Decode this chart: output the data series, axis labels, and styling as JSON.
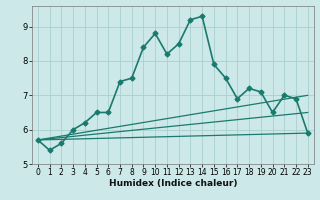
{
  "title": "",
  "xlabel": "Humidex (Indice chaleur)",
  "ylabel": "",
  "bg_color": "#cce8e8",
  "grid_color": "#aad0d0",
  "line_color": "#1a7a6e",
  "xlim": [
    -0.5,
    23.5
  ],
  "ylim": [
    5.0,
    9.6
  ],
  "xticks": [
    0,
    1,
    2,
    3,
    4,
    5,
    6,
    7,
    8,
    9,
    10,
    11,
    12,
    13,
    14,
    15,
    16,
    17,
    18,
    19,
    20,
    21,
    22,
    23
  ],
  "yticks": [
    5,
    6,
    7,
    8,
    9
  ],
  "series": [
    {
      "x": [
        0,
        1,
        2,
        3,
        4,
        5,
        6,
        7,
        8,
        9,
        10,
        11,
        12,
        13,
        14,
        15,
        16,
        17,
        18,
        19,
        20,
        21,
        22,
        23
      ],
      "y": [
        5.7,
        5.4,
        5.6,
        6.0,
        6.2,
        6.5,
        6.5,
        7.4,
        7.5,
        8.4,
        8.8,
        8.2,
        8.5,
        9.2,
        9.3,
        7.9,
        7.5,
        6.9,
        7.2,
        7.1,
        6.5,
        7.0,
        6.9,
        5.9
      ],
      "marker": "D",
      "markersize": 2.5,
      "linewidth": 1.2
    },
    {
      "x": [
        0,
        23
      ],
      "y": [
        5.7,
        5.9
      ],
      "marker": null,
      "markersize": 0,
      "linewidth": 0.9
    },
    {
      "x": [
        0,
        23
      ],
      "y": [
        5.7,
        6.5
      ],
      "marker": null,
      "markersize": 0,
      "linewidth": 0.9
    },
    {
      "x": [
        0,
        23
      ],
      "y": [
        5.7,
        7.0
      ],
      "marker": null,
      "markersize": 0,
      "linewidth": 0.9
    }
  ],
  "tick_fontsize": 5.5,
  "xlabel_fontsize": 6.5
}
